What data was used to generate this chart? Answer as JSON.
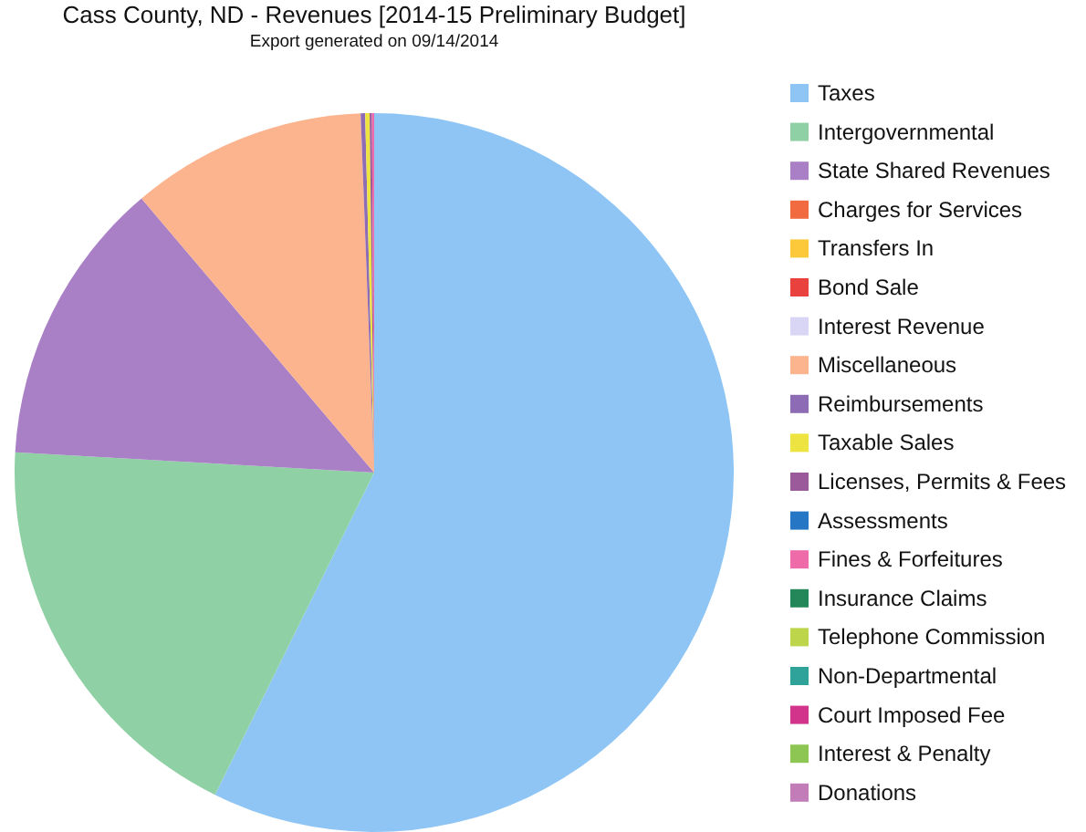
{
  "chart_data": {
    "type": "pie",
    "title": "Cass County, ND - Revenues   [2014-15 Preliminary Budget]",
    "subtitle": "Export generated on 09/14/2014",
    "categories": [
      "Taxes",
      "Intergovernmental",
      "State Shared Revenues",
      "Charges for Services",
      "Transfers In",
      "Bond Sale",
      "Interest Revenue",
      "Miscellaneous",
      "Reimbursements",
      "Taxable Sales",
      "Licenses, Permits & Fees",
      "Assessments",
      "Fines & Forfeitures",
      "Insurance Claims",
      "Telephone Commission",
      "Non-Departmental",
      "Court Imposed Fee",
      "Interest & Penalty",
      "Donations"
    ],
    "values": [
      57.3,
      18.6,
      12.9,
      0,
      0,
      0,
      0,
      10.6,
      0.2,
      0.2,
      0.1,
      0,
      0.1,
      0,
      0,
      0,
      0,
      0,
      0
    ],
    "colors": [
      "#8ec5f5",
      "#8fd0a4",
      "#a97fc6",
      "#f26a3f",
      "#fcc93a",
      "#e8413e",
      "#d9d6f5",
      "#fbb48e",
      "#8d6cb5",
      "#eee441",
      "#9b5a9a",
      "#2577c6",
      "#ee6aa8",
      "#23875a",
      "#bcd54b",
      "#2fa39a",
      "#d2348c",
      "#8dc653",
      "#c27cb8"
    ],
    "legend": "right"
  }
}
